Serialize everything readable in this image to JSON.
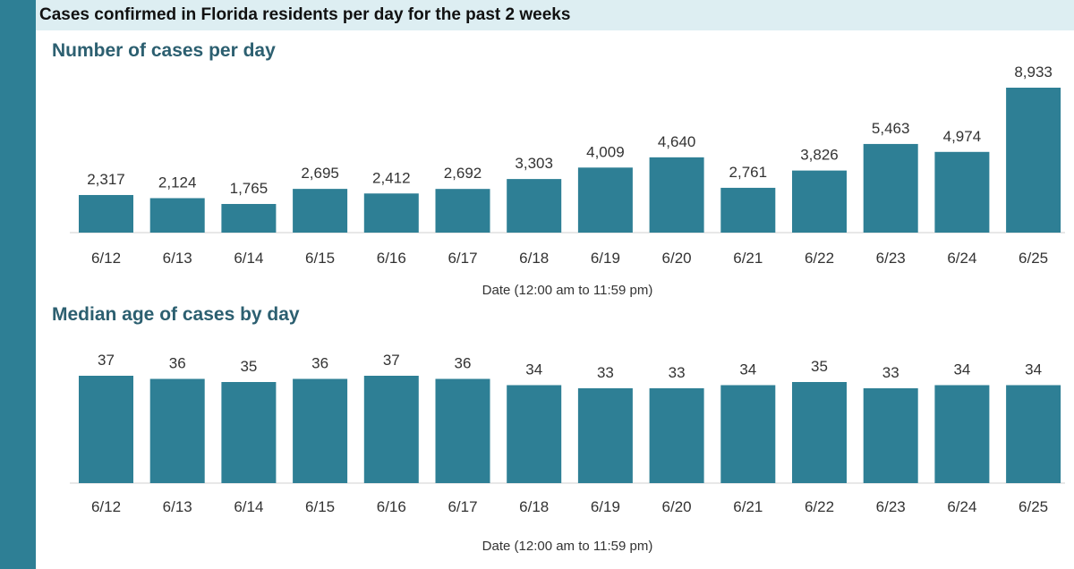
{
  "header": {
    "title": "Cases confirmed in Florida residents per day for the past 2 weeks"
  },
  "colors": {
    "bar": "#2e7f95",
    "sidebar": "#2e7f95",
    "header_bg": "#ddeef2",
    "title": "#2c5f70"
  },
  "chart_data": [
    {
      "type": "bar",
      "title": "Number of cases per day",
      "categories": [
        "6/12",
        "6/13",
        "6/14",
        "6/15",
        "6/16",
        "6/17",
        "6/18",
        "6/19",
        "6/20",
        "6/21",
        "6/22",
        "6/23",
        "6/24",
        "6/25"
      ],
      "values": [
        2317,
        2124,
        1765,
        2695,
        2412,
        2692,
        3303,
        4009,
        4640,
        2761,
        3826,
        5463,
        4974,
        8933
      ],
      "value_labels": [
        "2,317",
        "2,124",
        "1,765",
        "2,695",
        "2,412",
        "2,692",
        "3,303",
        "4,009",
        "4,640",
        "2,761",
        "3,826",
        "5,463",
        "4,974",
        "8,933"
      ],
      "xlabel": "Date (12:00 am to 11:59 pm)",
      "ylabel": "",
      "ylim": [
        0,
        8933
      ]
    },
    {
      "type": "bar",
      "title": "Median age of cases by day",
      "categories": [
        "6/12",
        "6/13",
        "6/14",
        "6/15",
        "6/16",
        "6/17",
        "6/18",
        "6/19",
        "6/20",
        "6/21",
        "6/22",
        "6/23",
        "6/24",
        "6/25"
      ],
      "values": [
        37,
        36,
        35,
        36,
        37,
        36,
        34,
        33,
        33,
        34,
        35,
        33,
        34,
        34
      ],
      "value_labels": [
        "37",
        "36",
        "35",
        "36",
        "37",
        "36",
        "34",
        "33",
        "33",
        "34",
        "35",
        "33",
        "34",
        "34"
      ],
      "xlabel": "Date (12:00 am to 11:59 pm)",
      "ylabel": "",
      "ylim": [
        0,
        37
      ]
    }
  ]
}
